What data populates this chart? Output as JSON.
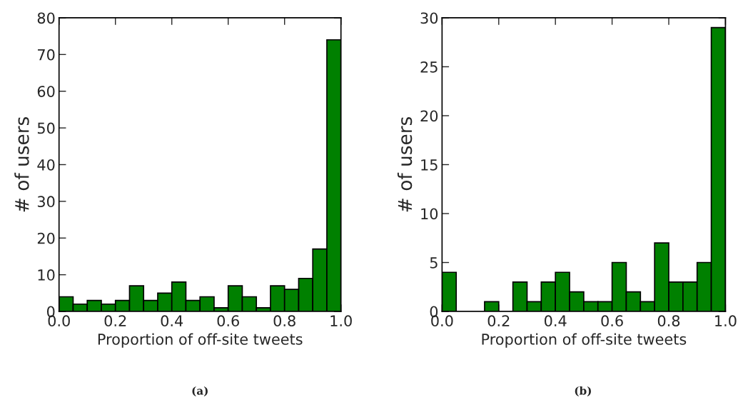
{
  "chart_data": [
    {
      "type": "histogram",
      "xlabel": "Proportion of off-site tweets",
      "ylabel": "# of users",
      "color": "#008000",
      "bins": [
        0,
        0.05,
        0.1,
        0.15,
        0.2,
        0.25,
        0.3,
        0.35,
        0.4,
        0.45,
        0.5,
        0.55,
        0.6,
        0.65,
        0.7,
        0.75,
        0.8,
        0.85,
        0.9,
        0.95,
        1.0
      ],
      "values": [
        4,
        2,
        3,
        2,
        3,
        7,
        3,
        5,
        8,
        3,
        4,
        1,
        7,
        4,
        1,
        7,
        6,
        9,
        17,
        74
      ],
      "xlim": [
        0,
        1
      ],
      "ylim": [
        0,
        80
      ],
      "xticks": [
        {
          "value": 0,
          "label": "0.0"
        },
        {
          "value": 0.2,
          "label": "0.2"
        },
        {
          "value": 0.4,
          "label": "0.4"
        },
        {
          "value": 0.6,
          "label": "0.6"
        },
        {
          "value": 0.8,
          "label": "0.8"
        },
        {
          "value": 1,
          "label": "1.0"
        }
      ],
      "yticks": [
        0,
        10,
        20,
        30,
        40,
        50,
        60,
        70,
        80
      ],
      "annotations": [
        "(a)"
      ]
    },
    {
      "type": "histogram",
      "xlabel": "Proportion of off-site tweets",
      "ylabel": "# of users",
      "color": "#008000",
      "bins": [
        0,
        0.05,
        0.1,
        0.15,
        0.2,
        0.25,
        0.3,
        0.35,
        0.4,
        0.45,
        0.5,
        0.55,
        0.6,
        0.65,
        0.7,
        0.75,
        0.8,
        0.85,
        0.9,
        0.95,
        1.0
      ],
      "values": [
        4,
        0,
        0,
        1,
        0,
        3,
        1,
        3,
        4,
        2,
        1,
        1,
        5,
        2,
        1,
        7,
        3,
        3,
        5,
        29
      ],
      "xlim": [
        0,
        1
      ],
      "ylim": [
        0,
        30
      ],
      "xticks": [
        {
          "value": 0,
          "label": "0.0"
        },
        {
          "value": 0.2,
          "label": "0.2"
        },
        {
          "value": 0.4,
          "label": "0.4"
        },
        {
          "value": 0.6,
          "label": "0.6"
        },
        {
          "value": 0.8,
          "label": "0.8"
        },
        {
          "value": 1,
          "label": "1.0"
        }
      ],
      "yticks": [
        0,
        5,
        10,
        15,
        20,
        25,
        30
      ],
      "annotations": [
        "(b)"
      ]
    }
  ]
}
